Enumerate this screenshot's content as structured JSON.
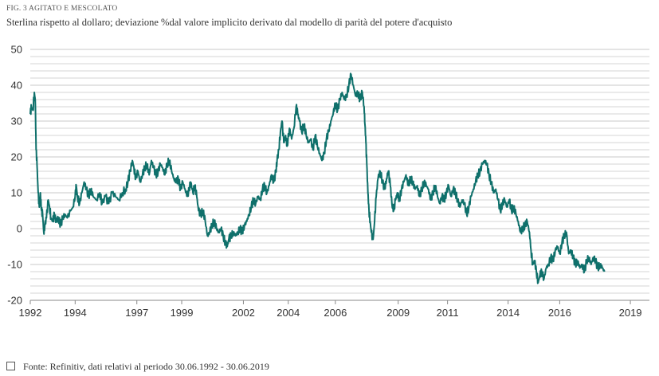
{
  "figure_label": "FIG. 3 AGITATO E MESCOLATO",
  "title": "Sterlina rispetto al dollaro; deviazione %dal valore implicito derivato dal modello di parità del potere d'acquisto",
  "source": "Fonte: Refinitiv, dati relativi al periodo 30.06.1992 - 30.06.2019",
  "colors": {
    "line": "#0f706b",
    "grid": "#c8c8c8",
    "axis": "#888888"
  },
  "chart_data": {
    "type": "line",
    "title": "Sterlina rispetto al dollaro; deviazione %dal valore implicito derivato dal modello di parità del potere d'acquisto",
    "xlabel": "",
    "ylabel": "",
    "ylim": [
      -20,
      50
    ],
    "yticks": [
      50,
      40,
      30,
      20,
      10,
      0,
      -10,
      -20
    ],
    "xlim": [
      1992.0,
      2019.6
    ],
    "xticks": [
      {
        "label": "1992",
        "value": 1992.0
      },
      {
        "label": "1994",
        "value": 1994.0
      },
      {
        "label": "1997",
        "value": 1996.75
      },
      {
        "label": "1999",
        "value": 1998.75
      },
      {
        "label": "2002",
        "value": 2001.5
      },
      {
        "label": "2004",
        "value": 2003.5
      },
      {
        "label": "2006",
        "value": 2005.6
      },
      {
        "label": "2009",
        "value": 2008.4
      },
      {
        "label": "2011",
        "value": 2010.6
      },
      {
        "label": "2014",
        "value": 2013.3
      },
      {
        "label": "2016",
        "value": 2015.6
      },
      {
        "label": "2019",
        "value": 2018.75
      }
    ],
    "grid": "horizontal",
    "series": [
      {
        "values": [
          [
            1992.0,
            32
          ],
          [
            1992.05,
            34
          ],
          [
            1992.12,
            33
          ],
          [
            1992.18,
            38
          ],
          [
            1992.22,
            36
          ],
          [
            1992.26,
            22
          ],
          [
            1992.3,
            18
          ],
          [
            1992.35,
            10
          ],
          [
            1992.4,
            6
          ],
          [
            1992.45,
            10
          ],
          [
            1992.5,
            5
          ],
          [
            1992.55,
            4
          ],
          [
            1992.6,
            -1
          ],
          [
            1992.65,
            1
          ],
          [
            1992.72,
            3
          ],
          [
            1992.8,
            8
          ],
          [
            1992.86,
            6
          ],
          [
            1992.92,
            3
          ],
          [
            1993.0,
            2
          ],
          [
            1993.08,
            4
          ],
          [
            1993.15,
            2
          ],
          [
            1993.25,
            3
          ],
          [
            1993.35,
            1
          ],
          [
            1993.45,
            3
          ],
          [
            1993.55,
            4
          ],
          [
            1993.65,
            3
          ],
          [
            1993.8,
            5
          ],
          [
            1993.9,
            6
          ],
          [
            1994.0,
            9
          ],
          [
            1994.05,
            12
          ],
          [
            1994.1,
            9
          ],
          [
            1994.2,
            7
          ],
          [
            1994.3,
            10
          ],
          [
            1994.4,
            13
          ],
          [
            1994.5,
            11
          ],
          [
            1994.6,
            9
          ],
          [
            1994.7,
            11
          ],
          [
            1994.8,
            9
          ],
          [
            1994.95,
            8
          ],
          [
            1995.1,
            10
          ],
          [
            1995.2,
            7
          ],
          [
            1995.35,
            9
          ],
          [
            1995.5,
            7
          ],
          [
            1995.65,
            10
          ],
          [
            1995.8,
            9
          ],
          [
            1995.95,
            8
          ],
          [
            1996.1,
            10
          ],
          [
            1996.25,
            11
          ],
          [
            1996.35,
            13
          ],
          [
            1996.45,
            16
          ],
          [
            1996.55,
            19
          ],
          [
            1996.62,
            17
          ],
          [
            1996.7,
            14
          ],
          [
            1996.8,
            16
          ],
          [
            1996.9,
            13
          ],
          [
            1997.0,
            15
          ],
          [
            1997.1,
            17
          ],
          [
            1997.2,
            18
          ],
          [
            1997.3,
            15
          ],
          [
            1997.4,
            19
          ],
          [
            1997.5,
            17
          ],
          [
            1997.6,
            15
          ],
          [
            1997.7,
            16
          ],
          [
            1997.8,
            18
          ],
          [
            1997.9,
            17
          ],
          [
            1998.0,
            15
          ],
          [
            1998.1,
            18
          ],
          [
            1998.2,
            19
          ],
          [
            1998.3,
            16
          ],
          [
            1998.4,
            14
          ],
          [
            1998.5,
            13
          ],
          [
            1998.6,
            14
          ],
          [
            1998.7,
            11
          ],
          [
            1998.8,
            13
          ],
          [
            1998.9,
            11
          ],
          [
            1999.0,
            9
          ],
          [
            1999.08,
            11
          ],
          [
            1999.15,
            13
          ],
          [
            1999.25,
            10
          ],
          [
            1999.33,
            12
          ],
          [
            1999.42,
            9
          ],
          [
            1999.5,
            5
          ],
          [
            1999.6,
            4
          ],
          [
            1999.7,
            5
          ],
          [
            1999.8,
            2
          ],
          [
            1999.9,
            -2
          ],
          [
            2000.0,
            -1
          ],
          [
            2000.1,
            1
          ],
          [
            2000.2,
            2
          ],
          [
            2000.3,
            0
          ],
          [
            2000.4,
            -1
          ],
          [
            2000.5,
            0
          ],
          [
            2000.6,
            -2
          ],
          [
            2000.7,
            -4
          ],
          [
            2000.78,
            -5
          ],
          [
            2000.85,
            -3
          ],
          [
            2000.95,
            -2
          ],
          [
            2001.05,
            -1
          ],
          [
            2001.15,
            -2
          ],
          [
            2001.25,
            -1
          ],
          [
            2001.35,
            0
          ],
          [
            2001.45,
            -1
          ],
          [
            2001.55,
            1
          ],
          [
            2001.65,
            2
          ],
          [
            2001.75,
            4
          ],
          [
            2001.85,
            6
          ],
          [
            2001.95,
            8
          ],
          [
            2002.05,
            7
          ],
          [
            2002.15,
            9
          ],
          [
            2002.25,
            8
          ],
          [
            2002.35,
            11
          ],
          [
            2002.45,
            12
          ],
          [
            2002.55,
            10
          ],
          [
            2002.65,
            12
          ],
          [
            2002.75,
            15
          ],
          [
            2002.85,
            13
          ],
          [
            2002.95,
            16
          ],
          [
            2003.0,
            19
          ],
          [
            2003.08,
            22
          ],
          [
            2003.15,
            27
          ],
          [
            2003.22,
            30
          ],
          [
            2003.3,
            24
          ],
          [
            2003.38,
            26
          ],
          [
            2003.45,
            23
          ],
          [
            2003.55,
            28
          ],
          [
            2003.65,
            25
          ],
          [
            2003.75,
            28
          ],
          [
            2003.85,
            34
          ],
          [
            2003.92,
            32
          ],
          [
            2004.0,
            30
          ],
          [
            2004.1,
            27
          ],
          [
            2004.2,
            29
          ],
          [
            2004.3,
            26
          ],
          [
            2004.4,
            24
          ],
          [
            2004.5,
            25
          ],
          [
            2004.6,
            22
          ],
          [
            2004.7,
            26
          ],
          [
            2004.8,
            23
          ],
          [
            2004.9,
            21
          ],
          [
            2005.0,
            19
          ],
          [
            2005.1,
            21
          ],
          [
            2005.2,
            25
          ],
          [
            2005.3,
            27
          ],
          [
            2005.4,
            30
          ],
          [
            2005.5,
            32
          ],
          [
            2005.6,
            35
          ],
          [
            2005.7,
            33
          ],
          [
            2005.8,
            36
          ],
          [
            2005.9,
            38
          ],
          [
            2006.0,
            36
          ],
          [
            2006.1,
            37
          ],
          [
            2006.2,
            40
          ],
          [
            2006.3,
            43
          ],
          [
            2006.4,
            40
          ],
          [
            2006.5,
            37
          ],
          [
            2006.6,
            38
          ],
          [
            2006.7,
            36
          ],
          [
            2006.8,
            38
          ],
          [
            2006.88,
            34
          ],
          [
            2006.92,
            29
          ],
          [
            2006.96,
            24
          ],
          [
            2007.0,
            18
          ],
          [
            2007.05,
            10
          ],
          [
            2007.1,
            5
          ],
          [
            2007.15,
            2
          ],
          [
            2007.2,
            -1
          ],
          [
            2007.28,
            -3
          ],
          [
            2007.35,
            2
          ],
          [
            2007.42,
            9
          ],
          [
            2007.5,
            14
          ],
          [
            2007.6,
            16
          ],
          [
            2007.7,
            13
          ],
          [
            2007.8,
            11
          ],
          [
            2007.88,
            14
          ],
          [
            2007.96,
            16
          ],
          [
            2008.05,
            12
          ],
          [
            2008.12,
            7
          ],
          [
            2008.2,
            5
          ],
          [
            2008.28,
            8
          ],
          [
            2008.36,
            10
          ],
          [
            2008.45,
            8
          ],
          [
            2008.55,
            11
          ],
          [
            2008.65,
            13
          ],
          [
            2008.75,
            15
          ],
          [
            2008.85,
            12
          ],
          [
            2008.95,
            14
          ],
          [
            2009.05,
            13
          ],
          [
            2009.15,
            11
          ],
          [
            2009.25,
            12
          ],
          [
            2009.35,
            9
          ],
          [
            2009.45,
            11
          ],
          [
            2009.55,
            13
          ],
          [
            2009.65,
            12
          ],
          [
            2009.75,
            11
          ],
          [
            2009.85,
            8
          ],
          [
            2009.95,
            10
          ],
          [
            2010.05,
            12
          ],
          [
            2010.15,
            9
          ],
          [
            2010.25,
            7
          ],
          [
            2010.35,
            9
          ],
          [
            2010.45,
            8
          ],
          [
            2010.55,
            10
          ],
          [
            2010.65,
            12
          ],
          [
            2010.75,
            9
          ],
          [
            2010.85,
            11
          ],
          [
            2010.95,
            10
          ],
          [
            2011.05,
            8
          ],
          [
            2011.15,
            6
          ],
          [
            2011.25,
            8
          ],
          [
            2011.35,
            7
          ],
          [
            2011.45,
            4
          ],
          [
            2011.55,
            6
          ],
          [
            2011.65,
            9
          ],
          [
            2011.75,
            11
          ],
          [
            2011.85,
            13
          ],
          [
            2011.95,
            15
          ],
          [
            2012.05,
            16
          ],
          [
            2012.15,
            18
          ],
          [
            2012.25,
            19
          ],
          [
            2012.35,
            18
          ],
          [
            2012.45,
            15
          ],
          [
            2012.55,
            13
          ],
          [
            2012.65,
            10
          ],
          [
            2012.75,
            11
          ],
          [
            2012.85,
            8
          ],
          [
            2012.95,
            5
          ],
          [
            2013.05,
            7
          ],
          [
            2013.15,
            8
          ],
          [
            2013.25,
            6
          ],
          [
            2013.35,
            8
          ],
          [
            2013.45,
            5
          ],
          [
            2013.55,
            6
          ],
          [
            2013.65,
            4
          ],
          [
            2013.75,
            2
          ],
          [
            2013.85,
            -1
          ],
          [
            2013.95,
            0
          ],
          [
            2014.05,
            1
          ],
          [
            2014.15,
            2
          ],
          [
            2014.25,
            -1
          ],
          [
            2014.32,
            -6
          ],
          [
            2014.4,
            -10
          ],
          [
            2014.48,
            -9
          ],
          [
            2014.56,
            -12
          ],
          [
            2014.64,
            -15
          ],
          [
            2014.72,
            -13
          ],
          [
            2014.8,
            -12
          ],
          [
            2014.9,
            -14
          ],
          [
            2015.0,
            -11
          ],
          [
            2015.1,
            -10
          ],
          [
            2015.2,
            -8
          ],
          [
            2015.3,
            -9
          ],
          [
            2015.4,
            -6
          ],
          [
            2015.5,
            -5
          ],
          [
            2015.6,
            -7
          ],
          [
            2015.7,
            -4
          ],
          [
            2015.8,
            -2
          ],
          [
            2015.9,
            -1
          ],
          [
            2016.0,
            -7
          ],
          [
            2016.1,
            -6
          ],
          [
            2016.2,
            -8
          ],
          [
            2016.3,
            -10
          ],
          [
            2016.4,
            -9
          ],
          [
            2016.5,
            -11
          ],
          [
            2016.6,
            -10
          ],
          [
            2016.7,
            -12
          ],
          [
            2016.8,
            -9
          ],
          [
            2016.9,
            -8
          ],
          [
            2017.0,
            -10
          ],
          [
            2017.1,
            -8
          ],
          [
            2017.2,
            -9
          ],
          [
            2017.3,
            -11
          ],
          [
            2017.4,
            -10
          ],
          [
            2017.5,
            -11
          ],
          [
            2017.6,
            -12
          ]
        ]
      }
    ]
  }
}
